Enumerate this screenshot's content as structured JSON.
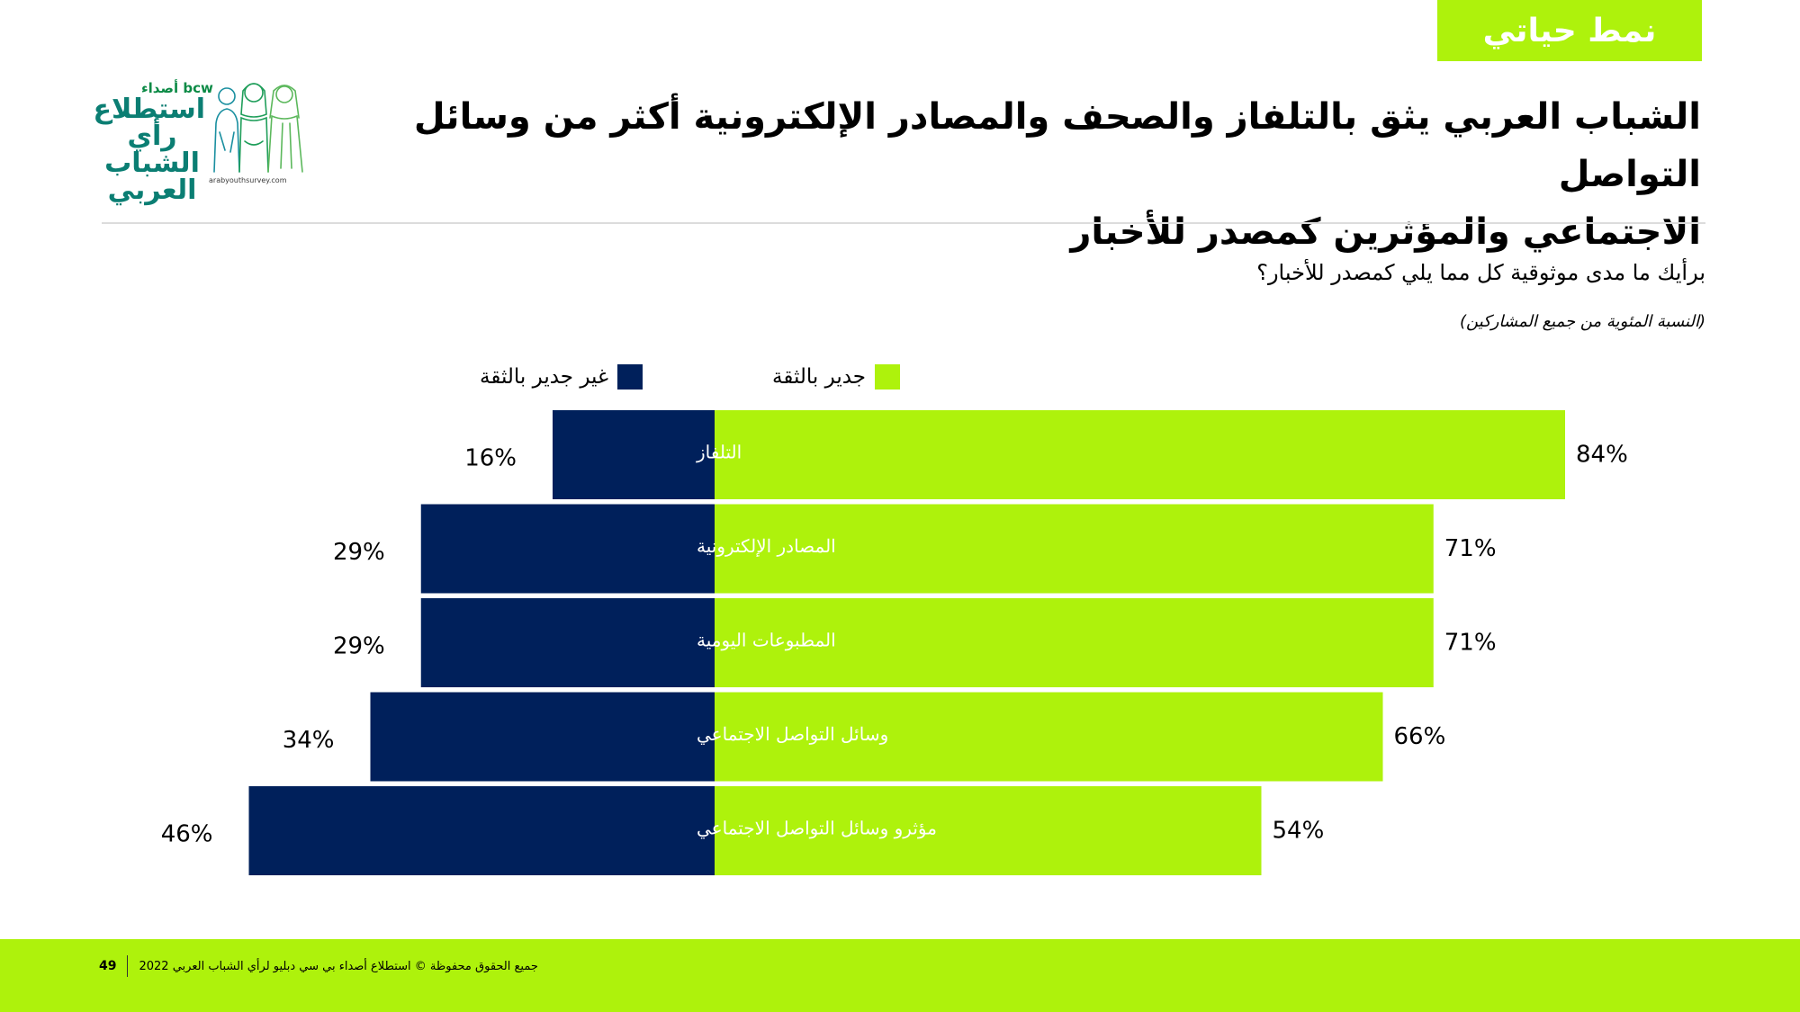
{
  "section_tag": "نمط حياتي",
  "logo": {
    "bcw": "bcw أصداء",
    "line1": "استطلاع",
    "line2": "رأي الشباب",
    "line3": "العربي",
    "url": "arabyouthsurvey.com"
  },
  "title_line1": "الشباب العربي يثق بالتلفاز والصحف والمصادر الإلكترونية أكثر من وسائل التواصل",
  "title_line2": "الاجتماعي والمؤثرين كمصدر للأخبار",
  "question": "برأيك ما مدى موثوقية كل مما يلي كمصدر للأخبار؟",
  "base_note": "(النسبة المئوية من جميع المشاركين)",
  "footer": {
    "page_number": "49",
    "copyright": "جميع الحقوق محفوظة © استطلاع أصداء بي سي دبليو لرأي الشباب العربي 2022"
  },
  "colors": {
    "trustworthy": "#aef20c",
    "not_trustworthy": "#00205b",
    "accent": "#aef20c"
  },
  "chart_data": {
    "type": "bar",
    "orientation": "horizontal-diverging",
    "categories": [
      "التلفاز",
      "المصادر الإلكترونية",
      "المطبوعات اليومية",
      "وسائل التواصل الاجتماعي",
      "مؤثرو وسائل التواصل الاجتماعي"
    ],
    "series": [
      {
        "name": "جدير بالثقة",
        "values": [
          84,
          71,
          71,
          66,
          54
        ],
        "labels": [
          "84%",
          "71%",
          "71%",
          "66%",
          "54%"
        ]
      },
      {
        "name": "غير جدير بالثقة",
        "values": [
          16,
          29,
          29,
          34,
          46
        ],
        "labels": [
          "16%",
          "29%",
          "29%",
          "34%",
          "46%"
        ]
      }
    ],
    "unit": "%",
    "legend_position": "top",
    "grid": false
  }
}
